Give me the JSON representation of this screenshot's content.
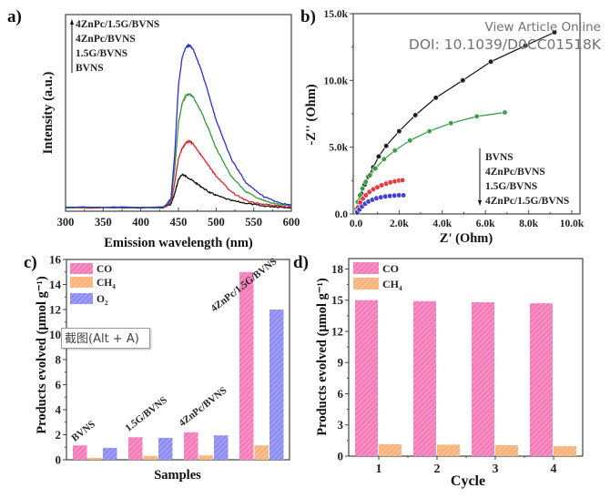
{
  "watermark": {
    "line1": "View Article Online",
    "line2": "DOI: 10.1039/D0CC01518K"
  },
  "tooltip": {
    "text": "截图(Alt + A)"
  },
  "colors": {
    "black": "#111111",
    "red": "#e0262b",
    "green": "#2f9a3a",
    "blue": "#2b2fd6",
    "co": "#f57ab8",
    "ch4": "#f8b27a",
    "o2": "#8c8cf2",
    "axis": "#444444"
  },
  "chart_data": [
    {
      "panel": "a)",
      "type": "line",
      "title": "",
      "xlabel": "Emission wavelength (nm)",
      "ylabel": "Intensity (a.u.)",
      "xlim": [
        300,
        600
      ],
      "ylim": [
        0,
        1
      ],
      "xticks": [
        "300",
        "350",
        "400",
        "450",
        "500",
        "550",
        "600"
      ],
      "legend": {
        "placement": "top-left",
        "arrow": "up",
        "entries": [
          "4ZnPc/1.5G/BVNS",
          "4ZnPc/BVNS",
          "1.5G/BVNS",
          "BVNS"
        ]
      },
      "series": [
        {
          "name": "BVNS",
          "color_key": "black",
          "x": [
            300,
            430,
            440,
            445,
            450,
            455,
            460,
            470,
            480,
            490,
            500,
            520,
            540,
            560,
            580,
            600
          ],
          "y": [
            0.0,
            0.0,
            0.02,
            0.08,
            0.16,
            0.19,
            0.18,
            0.15,
            0.12,
            0.09,
            0.07,
            0.04,
            0.025,
            0.01,
            0.005,
            0.0
          ]
        },
        {
          "name": "1.5G/BVNS",
          "color_key": "red",
          "x": [
            300,
            430,
            440,
            445,
            450,
            455,
            460,
            465,
            470,
            480,
            490,
            500,
            520,
            540,
            560,
            580,
            600
          ],
          "y": [
            0.0,
            0.0,
            0.03,
            0.14,
            0.28,
            0.34,
            0.37,
            0.38,
            0.36,
            0.3,
            0.24,
            0.18,
            0.09,
            0.04,
            0.02,
            0.01,
            0.0
          ]
        },
        {
          "name": "4ZnPc/BVNS",
          "color_key": "green",
          "x": [
            300,
            430,
            440,
            445,
            450,
            455,
            460,
            465,
            470,
            480,
            490,
            500,
            520,
            540,
            560,
            580,
            600
          ],
          "y": [
            0.0,
            0.0,
            0.04,
            0.22,
            0.48,
            0.6,
            0.64,
            0.65,
            0.63,
            0.55,
            0.45,
            0.34,
            0.18,
            0.09,
            0.045,
            0.02,
            0.01
          ]
        },
        {
          "name": "4ZnPc/1.5G/BVNS",
          "color_key": "blue",
          "x": [
            300,
            430,
            440,
            445,
            450,
            455,
            460,
            465,
            470,
            480,
            490,
            500,
            520,
            540,
            560,
            580,
            600
          ],
          "y": [
            0.0,
            0.0,
            0.05,
            0.3,
            0.7,
            0.86,
            0.92,
            0.93,
            0.9,
            0.79,
            0.65,
            0.5,
            0.28,
            0.14,
            0.07,
            0.03,
            0.015
          ]
        }
      ]
    },
    {
      "panel": "b)",
      "type": "scatter",
      "title": "",
      "xlabel": "Z' (Ohm)",
      "ylabel": "-Z'' (Ohm)",
      "xlim": [
        0,
        11000
      ],
      "ylim": [
        0,
        15000
      ],
      "xticks": [
        "0.0",
        "2.0k",
        "4.0k",
        "6.0k",
        "8.0k",
        "10.0k"
      ],
      "xtick_values": [
        0,
        2000,
        4000,
        6000,
        8000,
        10000
      ],
      "yticks": [
        "0.0",
        "5.0k",
        "10.0k",
        "15.0k"
      ],
      "ytick_values": [
        0,
        5000,
        10000,
        15000
      ],
      "legend": {
        "placement": "bottom-right",
        "arrow": "down",
        "entries": [
          "BVNS",
          "4ZnPc/BVNS",
          "1.5G/BVNS",
          "4ZnPc/1.5G/BVNS"
        ]
      },
      "series": [
        {
          "name": "BVNS",
          "color_key": "black",
          "fit_line": true,
          "x": [
            30,
            120,
            250,
            400,
            580,
            800,
            1050,
            1400,
            2000,
            2750,
            3700,
            4950,
            6250,
            7850,
            9200
          ],
          "y": [
            300,
            900,
            1500,
            2200,
            2800,
            3500,
            4300,
            5100,
            6200,
            7400,
            8700,
            10000,
            11400,
            12600,
            13600
          ]
        },
        {
          "name": "4ZnPc/BVNS",
          "color_key": "green",
          "fit_line": true,
          "x": [
            20,
            80,
            180,
            300,
            450,
            650,
            900,
            1300,
            1800,
            2500,
            3400,
            4400,
            5600,
            6900
          ],
          "y": [
            400,
            900,
            1400,
            1900,
            2400,
            2900,
            3400,
            4100,
            4750,
            5500,
            6200,
            6800,
            7300,
            7600
          ]
        },
        {
          "name": "1.5G/BVNS",
          "color_key": "red",
          "fit_line": false,
          "x": [
            30,
            100,
            200,
            320,
            460,
            620,
            800,
            990,
            1190,
            1400,
            1600,
            1800,
            2000,
            2150
          ],
          "y": [
            150,
            500,
            850,
            1150,
            1400,
            1650,
            1850,
            2000,
            2150,
            2270,
            2370,
            2440,
            2500,
            2520
          ]
        },
        {
          "name": "4ZnPc/1.5G/BVNS",
          "color_key": "blue",
          "fit_line": false,
          "x": [
            60,
            160,
            280,
            420,
            580,
            760,
            950,
            1150,
            1360,
            1570,
            1780,
            1990,
            2200
          ],
          "y": [
            100,
            330,
            560,
            760,
            930,
            1060,
            1170,
            1250,
            1310,
            1350,
            1380,
            1400,
            1400
          ]
        }
      ]
    },
    {
      "panel": "c)",
      "type": "bar",
      "title": "",
      "xlabel": "Samples",
      "ylabel": "Products evolved (μmol g⁻¹)",
      "ylim": [
        0,
        16
      ],
      "yticks": [
        "0",
        "2",
        "4",
        "6",
        "8",
        "10",
        "12",
        "14",
        "16"
      ],
      "ytick_values": [
        0,
        2,
        4,
        6,
        8,
        10,
        12,
        14,
        16
      ],
      "categories": [
        "BVNS",
        "1.5G/BVNS",
        "4ZnPc/BVNS",
        "4ZnPc/1.5G/BVNS"
      ],
      "legend": {
        "placement": "top-left",
        "entries": [
          "CO",
          "CH4",
          "O2"
        ]
      },
      "series": [
        {
          "name": "CO",
          "color_key": "co",
          "values": [
            1.15,
            1.8,
            2.2,
            15.0
          ]
        },
        {
          "name": "CH4",
          "color_key": "ch4",
          "values": [
            0.15,
            0.3,
            0.35,
            1.15
          ]
        },
        {
          "name": "O2",
          "color_key": "o2",
          "values": [
            0.95,
            1.75,
            1.95,
            12.0
          ]
        }
      ]
    },
    {
      "panel": "d)",
      "type": "bar",
      "title": "",
      "xlabel": "Cycle",
      "ylabel": "Products evolved (μmol g⁻¹)",
      "ylim": [
        0,
        19
      ],
      "yticks": [
        "0",
        "3",
        "6",
        "9",
        "12",
        "15",
        "18"
      ],
      "ytick_values": [
        0,
        3,
        6,
        9,
        12,
        15,
        18
      ],
      "categories": [
        "1",
        "2",
        "3",
        "4"
      ],
      "legend": {
        "placement": "top-left",
        "entries": [
          "CO",
          "CH4"
        ]
      },
      "series": [
        {
          "name": "CO",
          "color_key": "co",
          "values": [
            15.0,
            14.9,
            14.8,
            14.7
          ]
        },
        {
          "name": "CH4",
          "color_key": "ch4",
          "values": [
            1.15,
            1.1,
            1.05,
            0.95
          ]
        }
      ]
    }
  ]
}
